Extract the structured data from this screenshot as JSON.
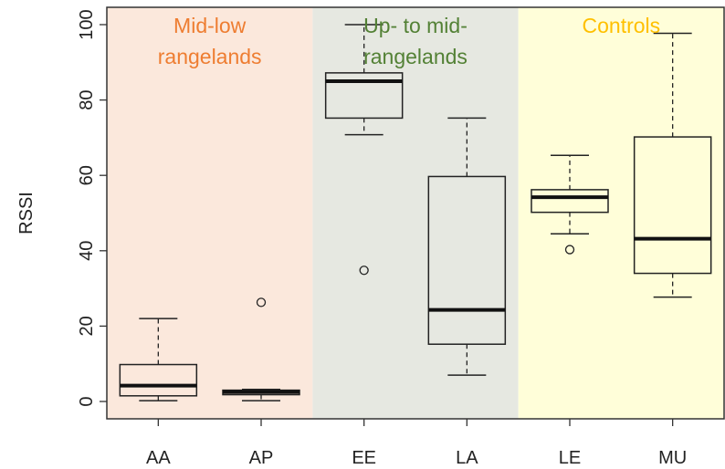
{
  "chart_data": {
    "type": "box",
    "ylabel": "RSSI",
    "xlabel": "",
    "ylim": [
      0,
      100
    ],
    "yticks": [
      0,
      20,
      40,
      60,
      80,
      100
    ],
    "grid": false,
    "categories": [
      "AA",
      "AP",
      "EE",
      "LA",
      "LE",
      "MU"
    ],
    "boxes": [
      {
        "name": "AA",
        "min": 0.2,
        "q1": 1.5,
        "median": 4.2,
        "q3": 9.8,
        "max": 22,
        "outliers": []
      },
      {
        "name": "AP",
        "min": 0.2,
        "q1": 1.8,
        "median": 2.5,
        "q3": 3.0,
        "max": 3.2,
        "outliers": [
          26.3
        ]
      },
      {
        "name": "EE",
        "min": 70.8,
        "q1": 75.2,
        "median": 85,
        "q3": 87.2,
        "max": 100,
        "outliers": [
          34.8
        ]
      },
      {
        "name": "LA",
        "min": 7,
        "q1": 15.2,
        "median": 24.3,
        "q3": 59.7,
        "max": 75.2,
        "outliers": []
      },
      {
        "name": "LE",
        "min": 44.5,
        "q1": 50.2,
        "median": 54.2,
        "q3": 56.2,
        "max": 65.3,
        "outliers": [
          40.3
        ]
      },
      {
        "name": "MU",
        "min": 27.7,
        "q1": 34.0,
        "median": 43.2,
        "q3": 70.2,
        "max": 97.7,
        "outliers": []
      }
    ],
    "regions": [
      {
        "label_lines": [
          "Mid-low",
          "rangelands"
        ],
        "from": "AA",
        "to": "AP",
        "bg": "#fbe8dc",
        "text_color": "#ee7d31"
      },
      {
        "label_lines": [
          "Up- to mid-",
          "rangelands"
        ],
        "from": "EE",
        "to": "LA",
        "bg": "#e6e8e1",
        "text_color": "#538135"
      },
      {
        "label_lines": [
          "Controls"
        ],
        "from": "LE",
        "to": "MU",
        "bg": "#fffed9",
        "text_color": "#ffc000"
      }
    ]
  }
}
